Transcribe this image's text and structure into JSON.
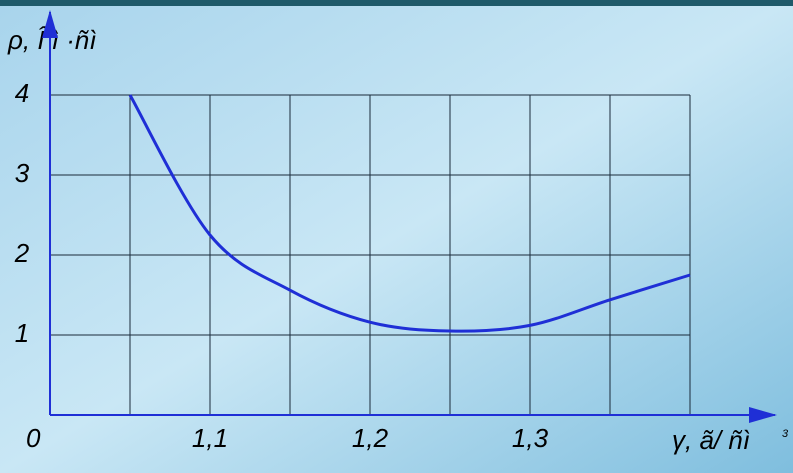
{
  "chart_data": {
    "type": "line",
    "y_axis_label": "ρ, Î ì ·ñì",
    "x_axis_label": "γ, ã/ ñì",
    "x_axis_label_sup": "3",
    "origin_label": "0",
    "x": [
      1.05,
      1.1,
      1.15,
      1.2,
      1.25,
      1.3,
      1.35,
      1.4
    ],
    "series": [
      {
        "color": "#1f2fd6",
        "values": [
          4,
          2.25,
          1.56,
          1.16,
          1.05,
          1.12,
          1.44,
          1.75
        ]
      }
    ],
    "xlim": [
      1.0,
      1.4
    ],
    "ylim": [
      0,
      4
    ],
    "xticks": [
      {
        "value": 1.1,
        "label": "1,1"
      },
      {
        "value": 1.2,
        "label": "1,2"
      },
      {
        "value": 1.3,
        "label": "1,3"
      }
    ],
    "yticks": [
      1,
      2,
      3,
      4
    ],
    "x_gridlines": [
      1.05,
      1.1,
      1.15,
      1.2,
      1.25,
      1.3,
      1.35,
      1.4
    ],
    "grid": true
  }
}
